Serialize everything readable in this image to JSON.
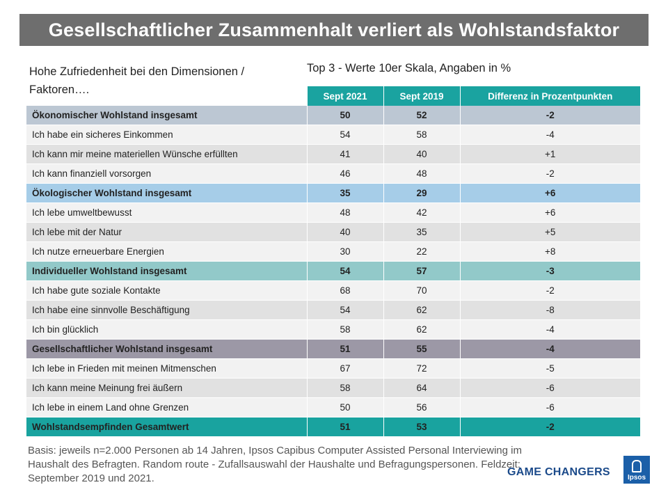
{
  "title": "Gesellschaftlicher Zusammenhalt verliert als Wohlstandsfaktor",
  "subtitle_left": "Hohe Zufriedenheit  bei den Dimensionen  / Faktoren….",
  "subtitle_right": "Top 3 - Werte  10er Skala, Angaben in %",
  "footnote": "Basis: jeweils n=2.000 Personen ab 14 Jahren,  Ipsos Capibus Computer Assisted Personal Interviewing im Haushalt des Befragten. Random route - Zufallsauswahl der Haushalte und Befragungspersonen. Feldzeit: September 2019 und 2021.",
  "brand": "GAME CHANGERS",
  "logo_text": "Ipsos",
  "colors": {
    "title_bg": "#6e6e6e",
    "header_bg": "#1aa3a0",
    "economic": "#bcc7d3",
    "ecological": "#a6cde8",
    "individual": "#92c9c9",
    "social": "#9c98a6",
    "total": "#19a39f"
  },
  "chart_data": {
    "type": "table",
    "columns": [
      "Sept 2021",
      "Sept 2019",
      "Differenz in Prozentpunkten"
    ],
    "rows": [
      {
        "label": "Ökonomischer Wohlstand  insgesamt",
        "sept2021": "50",
        "sept2019": "52",
        "diff": "-2",
        "kind": "economic"
      },
      {
        "label": "Ich habe ein sicheres Einkommen",
        "sept2021": "54",
        "sept2019": "58",
        "diff": "-4",
        "kind": "item"
      },
      {
        "label": "Ich kann mir meine materiellen Wünsche erfüllten",
        "sept2021": "41",
        "sept2019": "40",
        "diff": "+1",
        "kind": "item"
      },
      {
        "label": "Ich kann finanziell vorsorgen",
        "sept2021": "46",
        "sept2019": "48",
        "diff": "-2",
        "kind": "item"
      },
      {
        "label": "Ökologischer Wohlstand  insgesamt",
        "sept2021": "35",
        "sept2019": "29",
        "diff": "+6",
        "kind": "ecological"
      },
      {
        "label": "Ich lebe umweltbewusst",
        "sept2021": "48",
        "sept2019": "42",
        "diff": "+6",
        "kind": "item"
      },
      {
        "label": "Ich lebe mit der Natur",
        "sept2021": "40",
        "sept2019": "35",
        "diff": "+5",
        "kind": "item"
      },
      {
        "label": "Ich nutze erneuerbare Energien",
        "sept2021": "30",
        "sept2019": "22",
        "diff": "+8",
        "kind": "item"
      },
      {
        "label": "Individueller  Wohlstand  insgesamt",
        "sept2021": "54",
        "sept2019": "57",
        "diff": "-3",
        "kind": "individual"
      },
      {
        "label": "Ich habe gute soziale Kontakte",
        "sept2021": "68",
        "sept2019": "70",
        "diff": "-2",
        "kind": "item"
      },
      {
        "label": "Ich habe eine sinnvolle Beschäftigung",
        "sept2021": "54",
        "sept2019": "62",
        "diff": "-8",
        "kind": "item"
      },
      {
        "label": "Ich bin glücklich",
        "sept2021": "58",
        "sept2019": "62",
        "diff": "-4",
        "kind": "item"
      },
      {
        "label": "Gesellschaftlicher  Wohlstand  insgesamt",
        "sept2021": "51",
        "sept2019": "55",
        "diff": "-4",
        "kind": "social"
      },
      {
        "label": "Ich lebe in Frieden mit meinen Mitmenschen",
        "sept2021": "67",
        "sept2019": "72",
        "diff": "-5",
        "kind": "item"
      },
      {
        "label": "Ich kann meine Meinung frei äußern",
        "sept2021": "58",
        "sept2019": "64",
        "diff": "-6",
        "kind": "item"
      },
      {
        "label": "Ich lebe in einem Land ohne Grenzen",
        "sept2021": "50",
        "sept2019": "56",
        "diff": "-6",
        "kind": "item"
      },
      {
        "label": "Wohlstandsempfinden  Gesamtwert",
        "sept2021": "51",
        "sept2019": "53",
        "diff": "-2",
        "kind": "total"
      }
    ]
  }
}
